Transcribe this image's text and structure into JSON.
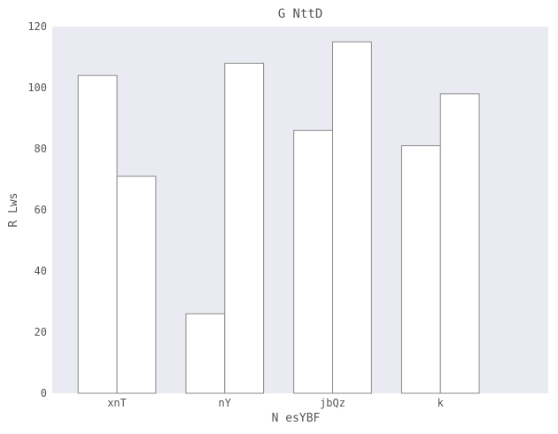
{
  "chart_data": {
    "type": "bar",
    "title": "G NttD",
    "xlabel": "N esYBF",
    "ylabel": "R Lws",
    "categories": [
      "xnT",
      "nY",
      "jbQz",
      "k"
    ],
    "series": [
      {
        "values": [
          104,
          26,
          86,
          81
        ]
      },
      {
        "values": [
          71,
          108,
          115,
          98
        ]
      }
    ],
    "ylim": [
      0,
      120
    ],
    "yticks": [
      0,
      20,
      40,
      60,
      80,
      100,
      120
    ],
    "grid": false,
    "legend": "none",
    "colors": {
      "plot_background": "#eaeaf2",
      "bar_fill": "#ffffff",
      "bar_edge": "#8a8a8a",
      "text": "#555555"
    }
  }
}
